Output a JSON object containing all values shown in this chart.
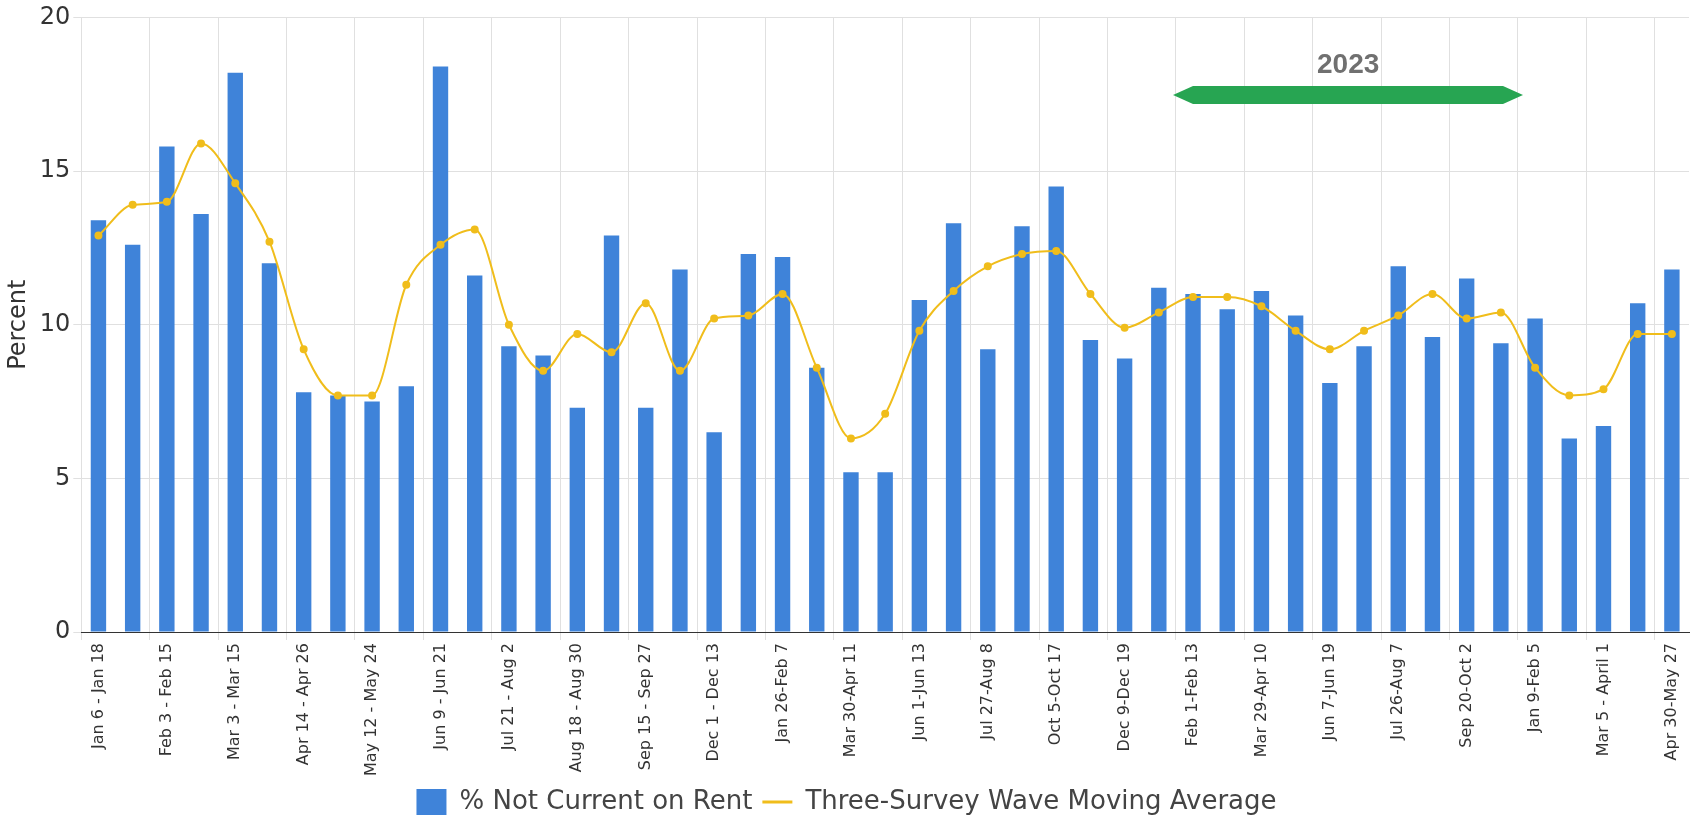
{
  "chart_data": {
    "type": "bar",
    "ylabel": "Percent",
    "annotations": [
      "2023"
    ],
    "categories": [
      "Jan 6 - Jan 18",
      null,
      "Feb 3 - Feb 15",
      null,
      "Mar 3 - Mar 15",
      null,
      "Apr 14 - Apr 26",
      null,
      "May 12 - May 24",
      null,
      "Jun 9 - Jun 21",
      null,
      "Jul 21 - Aug 2",
      null,
      "Aug 18 - Aug 30",
      null,
      "Sep 15 - Sep 27",
      null,
      "Dec 1 - Dec 13",
      null,
      "Jan 26-Feb 7",
      null,
      "Mar 30-Apr 11",
      null,
      "Jun 1-Jun 13",
      null,
      "Jul 27-Aug 8",
      null,
      "Oct 5-Oct 17",
      null,
      "Dec 9-Dec 19",
      null,
      "Feb 1-Feb 13",
      null,
      "Mar 29-Apr 10",
      null,
      "Jun 7-Jun 19",
      null,
      "Jul 26-Aug 7",
      null,
      "Sep 20-Oct 2",
      null,
      "Jan 9-Feb 5",
      null,
      "Mar 5 - April 1",
      null,
      "Apr 30-May 27"
    ],
    "series": [
      {
        "name": "% Not Current on Rent",
        "color": "#3f83d9",
        "values": [
          13.4,
          12.6,
          15.8,
          13.6,
          18.2,
          12.0,
          7.8,
          7.7,
          7.5,
          8.0,
          18.4,
          11.6,
          9.3,
          9.0,
          7.3,
          12.9,
          7.3,
          11.8,
          6.5,
          12.3,
          12.2,
          8.6,
          5.2,
          5.2,
          10.8,
          13.3,
          9.2,
          13.2,
          14.5,
          9.5,
          8.9,
          11.2,
          11.0,
          10.5,
          11.1,
          10.3,
          8.1,
          9.3,
          11.9,
          9.6,
          11.5,
          9.4,
          10.2,
          6.3,
          6.7,
          10.7,
          11.8
        ]
      },
      {
        "name": "Three-Survey Wave Moving Average",
        "type": "line",
        "color": "#f0bd1b",
        "marker": "circle",
        "values": [
          12.9,
          13.9,
          14.0,
          15.9,
          14.6,
          12.7,
          9.2,
          7.7,
          7.7,
          11.3,
          12.6,
          13.1,
          10.0,
          8.5,
          9.7,
          9.1,
          10.7,
          8.5,
          10.2,
          10.3,
          11.0,
          8.6,
          6.3,
          7.1,
          9.8,
          11.1,
          11.9,
          12.3,
          12.4,
          11.0,
          9.9,
          10.4,
          10.9,
          10.9,
          10.6,
          9.8,
          9.2,
          9.8,
          10.3,
          11.0,
          10.2,
          10.4,
          8.6,
          7.7,
          7.9,
          9.7,
          9.7
        ]
      }
    ],
    "ylim": [
      0,
      20
    ],
    "yticks": [
      0,
      5,
      10,
      15,
      20
    ],
    "grid": true,
    "legend": "bottom"
  }
}
